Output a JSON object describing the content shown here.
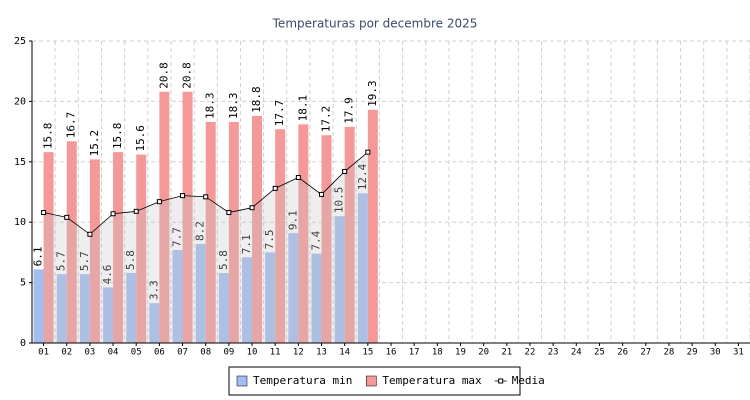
{
  "chart_data": {
    "type": "bar",
    "title": "Temperaturas por decembre 2025",
    "categories": [
      "01",
      "02",
      "03",
      "04",
      "05",
      "06",
      "07",
      "08",
      "09",
      "10",
      "11",
      "12",
      "13",
      "14",
      "15",
      "16",
      "17",
      "18",
      "19",
      "20",
      "21",
      "22",
      "23",
      "24",
      "25",
      "26",
      "27",
      "28",
      "29",
      "30",
      "31"
    ],
    "series": [
      {
        "name": "Temperatura min",
        "type": "bar",
        "color": "#a3bdf0",
        "values": [
          6.1,
          5.7,
          5.7,
          4.6,
          5.8,
          3.3,
          7.7,
          8.2,
          5.8,
          7.1,
          7.5,
          9.1,
          7.4,
          10.5,
          12.4,
          null,
          null,
          null,
          null,
          null,
          null,
          null,
          null,
          null,
          null,
          null,
          null,
          null,
          null,
          null,
          null
        ]
      },
      {
        "name": "Temperatura max",
        "type": "bar",
        "color": "#f59898",
        "values": [
          15.8,
          16.7,
          15.2,
          15.8,
          15.6,
          20.8,
          20.8,
          18.3,
          18.3,
          18.8,
          17.7,
          18.1,
          17.2,
          17.9,
          19.3,
          null,
          null,
          null,
          null,
          null,
          null,
          null,
          null,
          null,
          null,
          null,
          null,
          null,
          null,
          null,
          null
        ]
      },
      {
        "name": "Media",
        "type": "line",
        "color": "#000000",
        "values": [
          10.8,
          10.4,
          9.0,
          10.7,
          10.9,
          11.7,
          12.2,
          12.1,
          10.8,
          11.2,
          12.8,
          13.7,
          12.3,
          14.2,
          15.8,
          null,
          null,
          null,
          null,
          null,
          null,
          null,
          null,
          null,
          null,
          null,
          null,
          null,
          null,
          null,
          null
        ]
      }
    ],
    "ylim": [
      0,
      25
    ],
    "yticks": [
      0,
      5,
      10,
      15,
      20,
      25
    ],
    "grid": true,
    "legend": "bottom"
  }
}
